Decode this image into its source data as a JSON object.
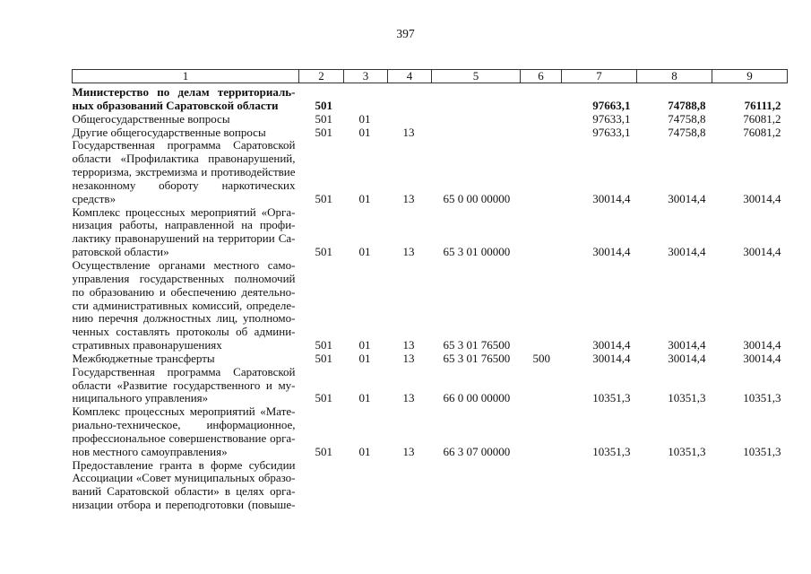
{
  "page_number": "397",
  "headers": [
    "1",
    "2",
    "3",
    "4",
    "5",
    "6",
    "7",
    "8",
    "9"
  ],
  "rows": [
    {
      "bold": true,
      "lines": [
        "Министерство по делам территориаль-",
        "ных образований Саратовской области"
      ],
      "c2": "501",
      "c3": "",
      "c4": "",
      "c5": "",
      "c6": "",
      "c7": "97663,1",
      "c8": "74788,8",
      "c9": "76111,2"
    },
    {
      "bold": false,
      "lines": [
        "Общегосударственные вопросы"
      ],
      "c2": "501",
      "c3": "01",
      "c4": "",
      "c5": "",
      "c6": "",
      "c7": "97633,1",
      "c8": "74758,8",
      "c9": "76081,2"
    },
    {
      "bold": false,
      "lines": [
        "Другие общегосударственные вопросы"
      ],
      "c2": "501",
      "c3": "01",
      "c4": "13",
      "c5": "",
      "c6": "",
      "c7": "97633,1",
      "c8": "74758,8",
      "c9": "76081,2"
    },
    {
      "bold": false,
      "lines": [
        "Государственная программа Саратовской",
        "области «Профилактика правонарушений,",
        "терроризма, экстремизма и противодействие",
        "незаконному обороту наркотических",
        "средств»"
      ],
      "c2": "501",
      "c3": "01",
      "c4": "13",
      "c5": "65 0 00 00000",
      "c6": "",
      "c7": "30014,4",
      "c8": "30014,4",
      "c9": "30014,4"
    },
    {
      "bold": false,
      "lines": [
        "Комплекс процессных мероприятий «Орга-",
        "низация работы, направленной на профи-",
        "лактику правонарушений на территории Са-",
        "ратовской области»"
      ],
      "c2": "501",
      "c3": "01",
      "c4": "13",
      "c5": "65 3 01 00000",
      "c6": "",
      "c7": "30014,4",
      "c8": "30014,4",
      "c9": "30014,4"
    },
    {
      "bold": false,
      "lines": [
        "Осуществление органами местного само-",
        "управления государственных полномочий",
        "по образованию и обеспечению деятельно-",
        "сти административных комиссий, определе-",
        "нию перечня должностных лиц, уполномо-",
        "ченных составлять протоколы об админи-",
        "стративных правонарушениях"
      ],
      "c2": "501",
      "c3": "01",
      "c4": "13",
      "c5": "65 3 01 76500",
      "c6": "",
      "c7": "30014,4",
      "c8": "30014,4",
      "c9": "30014,4"
    },
    {
      "bold": false,
      "lines": [
        "Межбюджетные трансферты"
      ],
      "c2": "501",
      "c3": "01",
      "c4": "13",
      "c5": "65 3 01 76500",
      "c6": "500",
      "c7": "30014,4",
      "c8": "30014,4",
      "c9": "30014,4"
    },
    {
      "bold": false,
      "lines": [
        "Государственная программа Саратовской",
        "области «Развитие государственного и му-",
        "ниципального управления»"
      ],
      "c2": "501",
      "c3": "01",
      "c4": "13",
      "c5": "66 0 00 00000",
      "c6": "",
      "c7": "10351,3",
      "c8": "10351,3",
      "c9": "10351,3"
    },
    {
      "bold": false,
      "lines": [
        "Комплекс процессных мероприятий «Мате-",
        "риально-техническое, информационное,",
        "профессиональное совершенствование орга-",
        "нов местного самоуправления»"
      ],
      "c2": "501",
      "c3": "01",
      "c4": "13",
      "c5": "66 3 07 00000",
      "c6": "",
      "c7": "10351,3",
      "c8": "10351,3",
      "c9": "10351,3"
    },
    {
      "bold": false,
      "lines": [
        "Предоставление гранта в форме субсидии",
        "Ассоциации «Совет муниципальных образо-",
        "ваний Саратовской области» в целях орга-",
        "низации отбора и переподготовки (повыше-"
      ],
      "c2": "",
      "c3": "",
      "c4": "",
      "c5": "",
      "c6": "",
      "c7": "",
      "c8": "",
      "c9": "",
      "continues": true
    }
  ]
}
